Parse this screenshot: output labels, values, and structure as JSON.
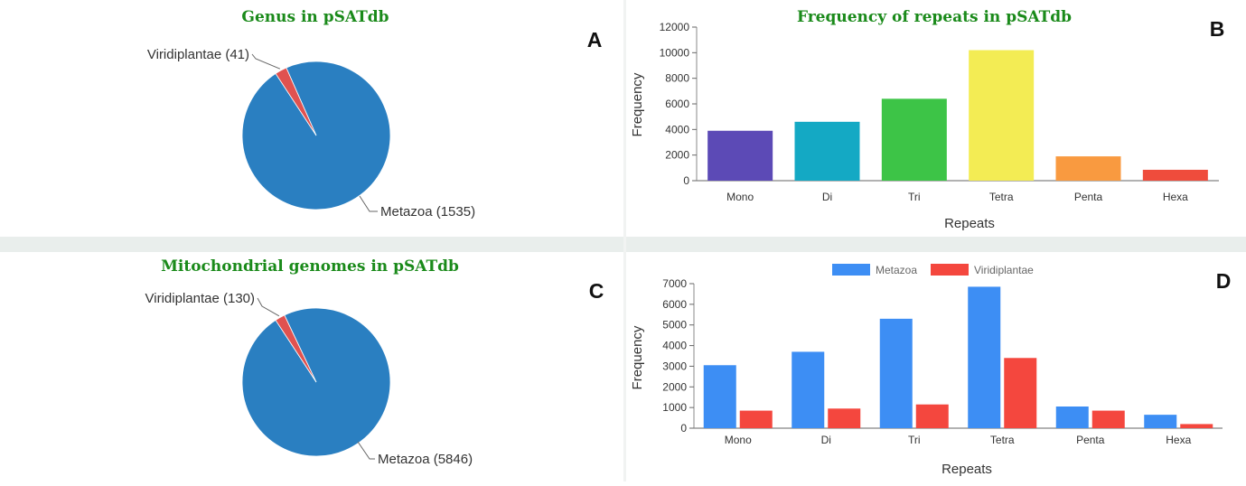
{
  "chart_data": [
    {
      "panel": "A",
      "type": "pie",
      "title": "Genus in pSATdb",
      "slices": [
        {
          "label": "Metazoa (1535)",
          "name": "Metazoa",
          "value": 1535,
          "color": "#2a7fc1"
        },
        {
          "label": "Viridiplantae (41)",
          "name": "Viridiplantae",
          "value": 41,
          "color": "#e05250"
        }
      ]
    },
    {
      "panel": "B",
      "type": "bar",
      "title": "Frequency of repeats in pSATdb",
      "xlabel": "Repeats",
      "ylabel": "Frequency",
      "categories": [
        "Mono",
        "Di",
        "Tri",
        "Tetra",
        "Penta",
        "Hexa"
      ],
      "values": [
        3900,
        4600,
        6400,
        10200,
        1900,
        850
      ],
      "colors": [
        "#5c4ab6",
        "#14a9c4",
        "#3dc447",
        "#f3ec54",
        "#f99a40",
        "#ef4c3c"
      ],
      "ylim": [
        0,
        12000
      ],
      "yticks": [
        "0",
        "2000",
        "4000",
        "6000",
        "8000",
        "10000",
        "12000"
      ]
    },
    {
      "panel": "C",
      "type": "pie",
      "title": "Mitochondrial genomes in pSATdb",
      "slices": [
        {
          "label": "Metazoa (5846)",
          "name": "Metazoa",
          "value": 5846,
          "color": "#2a7fc1"
        },
        {
          "label": "Viridiplantae (130)",
          "name": "Viridiplantae",
          "value": 130,
          "color": "#e05250"
        }
      ]
    },
    {
      "panel": "D",
      "type": "bar",
      "title": "",
      "xlabel": "Repeats",
      "ylabel": "Frequency",
      "categories": [
        "Mono",
        "Di",
        "Tri",
        "Tetra",
        "Penta",
        "Hexa"
      ],
      "series": [
        {
          "name": "Metazoa",
          "color": "#3d8ef4",
          "values": [
            3050,
            3700,
            5300,
            6850,
            1050,
            650
          ]
        },
        {
          "name": "Viridiplantae",
          "color": "#f4473e",
          "values": [
            850,
            950,
            1150,
            3400,
            850,
            200
          ]
        }
      ],
      "ylim": [
        0,
        7000
      ],
      "yticks": [
        "0",
        "1000",
        "2000",
        "3000",
        "4000",
        "5000",
        "6000",
        "7000"
      ],
      "legend": "top-center"
    }
  ],
  "panel_letters": {
    "a": "A",
    "b": "B",
    "c": "C",
    "d": "D"
  }
}
